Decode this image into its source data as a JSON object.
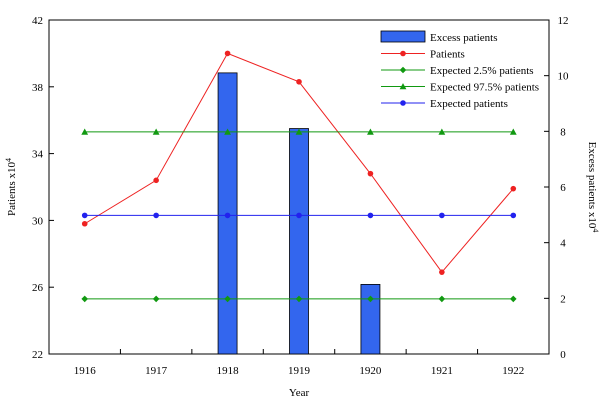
{
  "chart_data": {
    "type": "bar",
    "categories": [
      "1916",
      "1917",
      "1918",
      "1919",
      "1920",
      "1921",
      "1922"
    ],
    "xlabel": "Year",
    "ylabel_left": {
      "text": "Patients x10",
      "sup": "4"
    },
    "ylabel_right": {
      "text": "Excess patients x10",
      "sup": "4"
    },
    "ylim_left": [
      22,
      42
    ],
    "yticks_left": [
      22,
      26,
      30,
      34,
      38,
      42
    ],
    "ylim_right": [
      0,
      12
    ],
    "yticks_right": [
      0,
      2,
      4,
      6,
      8,
      10,
      12
    ],
    "grid": false,
    "legend_position": "top-right",
    "series": [
      {
        "name": "Excess patients",
        "kind": "bar",
        "axis": "right",
        "color": "#3366ee",
        "values": [
          null,
          null,
          10.1,
          8.1,
          2.5,
          null,
          null
        ]
      },
      {
        "name": "Patients",
        "kind": "line",
        "marker": "circle",
        "axis": "left",
        "color": "#ee2222",
        "values": [
          29.8,
          32.4,
          40.0,
          38.3,
          32.8,
          26.9,
          31.9
        ]
      },
      {
        "name": "Expected 2.5% patients",
        "kind": "line",
        "marker": "diamond",
        "axis": "left",
        "color": "#119911",
        "values": [
          25.3,
          25.3,
          25.3,
          25.3,
          25.3,
          25.3,
          25.3
        ]
      },
      {
        "name": "Expected 97.5% patients",
        "kind": "line",
        "marker": "triangle",
        "axis": "left",
        "color": "#119911",
        "values": [
          35.3,
          35.3,
          35.3,
          35.3,
          35.3,
          35.3,
          35.3
        ]
      },
      {
        "name": "Expected patients",
        "kind": "line",
        "marker": "circle",
        "axis": "left",
        "color": "#2222ee",
        "values": [
          30.3,
          30.3,
          30.3,
          30.3,
          30.3,
          30.3,
          30.3
        ]
      }
    ]
  }
}
